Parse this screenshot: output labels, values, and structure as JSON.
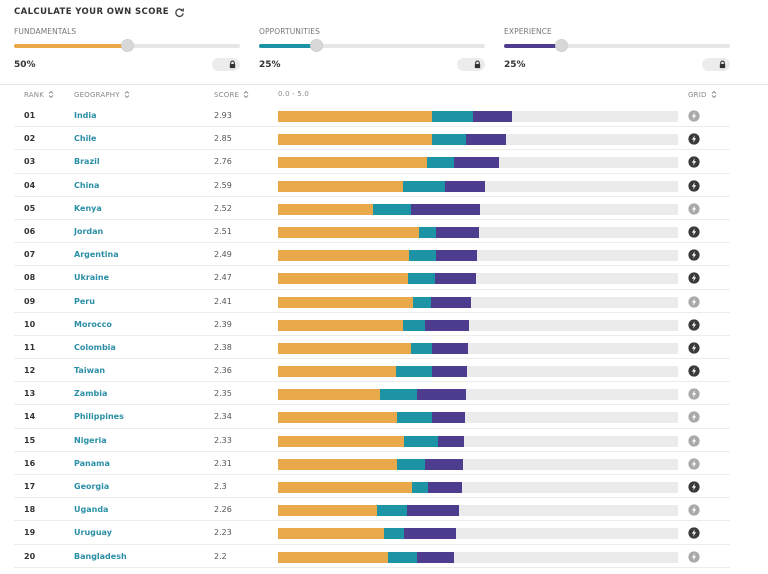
{
  "header": {
    "title": "CALCULATE YOUR OWN SCORE",
    "refresh_icon": "refresh-icon"
  },
  "colors": {
    "fundamentals": "#e9a94a",
    "opportunities": "#1d93a6",
    "experience": "#4e3d8f",
    "grid_dark": "#3a3a3a",
    "grid_light": "#a9a9a9"
  },
  "sliders": [
    {
      "key": "fundamentals",
      "label": "FUNDAMENTALS",
      "value_label": "50%",
      "value": 0.5,
      "color": "#e9a94a"
    },
    {
      "key": "opportunities",
      "label": "OPPORTUNITIES",
      "value_label": "25%",
      "value": 0.25,
      "color": "#1d93a6"
    },
    {
      "key": "experience",
      "label": "EXPERIENCE",
      "value_label": "25%",
      "value": 0.25,
      "color": "#4e3d8f"
    }
  ],
  "table": {
    "headers": {
      "rank": "RANK",
      "geography": "GEOGRAPHY",
      "score": "SCORE",
      "scale": "0.0 - 5.0",
      "grid": "GRID"
    },
    "scale_max": 5.0,
    "rows": [
      {
        "rank": "01",
        "geography": "India",
        "score": "2.93",
        "f": 1.93,
        "o": 0.51,
        "e": 0.49,
        "grid_dark": false
      },
      {
        "rank": "02",
        "geography": "Chile",
        "score": "2.85",
        "f": 1.93,
        "o": 0.42,
        "e": 0.5,
        "grid_dark": true
      },
      {
        "rank": "03",
        "geography": "Brazil",
        "score": "2.76",
        "f": 1.86,
        "o": 0.34,
        "e": 0.56,
        "grid_dark": true
      },
      {
        "rank": "04",
        "geography": "China",
        "score": "2.59",
        "f": 1.56,
        "o": 0.53,
        "e": 0.5,
        "grid_dark": true
      },
      {
        "rank": "05",
        "geography": "Kenya",
        "score": "2.52",
        "f": 1.19,
        "o": 0.47,
        "e": 0.86,
        "grid_dark": false
      },
      {
        "rank": "06",
        "geography": "Jordan",
        "score": "2.51",
        "f": 1.76,
        "o": 0.22,
        "e": 0.53,
        "grid_dark": true
      },
      {
        "rank": "07",
        "geography": "Argentina",
        "score": "2.49",
        "f": 1.64,
        "o": 0.34,
        "e": 0.51,
        "grid_dark": true
      },
      {
        "rank": "08",
        "geography": "Ukraine",
        "score": "2.47",
        "f": 1.63,
        "o": 0.33,
        "e": 0.51,
        "grid_dark": true
      },
      {
        "rank": "09",
        "geography": "Peru",
        "score": "2.41",
        "f": 1.69,
        "o": 0.22,
        "e": 0.5,
        "grid_dark": false
      },
      {
        "rank": "10",
        "geography": "Morocco",
        "score": "2.39",
        "f": 1.56,
        "o": 0.28,
        "e": 0.55,
        "grid_dark": true
      },
      {
        "rank": "11",
        "geography": "Colombia",
        "score": "2.38",
        "f": 1.66,
        "o": 0.26,
        "e": 0.46,
        "grid_dark": true
      },
      {
        "rank": "12",
        "geography": "Taiwan",
        "score": "2.36",
        "f": 1.48,
        "o": 0.44,
        "e": 0.44,
        "grid_dark": true
      },
      {
        "rank": "13",
        "geography": "Zambia",
        "score": "2.35",
        "f": 1.28,
        "o": 0.46,
        "e": 0.61,
        "grid_dark": false
      },
      {
        "rank": "14",
        "geography": "Philippines",
        "score": "2.34",
        "f": 1.49,
        "o": 0.44,
        "e": 0.41,
        "grid_dark": false
      },
      {
        "rank": "15",
        "geography": "Nigeria",
        "score": "2.33",
        "f": 1.57,
        "o": 0.43,
        "e": 0.33,
        "grid_dark": false
      },
      {
        "rank": "16",
        "geography": "Panama",
        "score": "2.31",
        "f": 1.49,
        "o": 0.35,
        "e": 0.47,
        "grid_dark": false
      },
      {
        "rank": "17",
        "geography": "Georgia",
        "score": "2.3",
        "f": 1.67,
        "o": 0.21,
        "e": 0.42,
        "grid_dark": true
      },
      {
        "rank": "18",
        "geography": "Uganda",
        "score": "2.26",
        "f": 1.24,
        "o": 0.37,
        "e": 0.65,
        "grid_dark": false
      },
      {
        "rank": "19",
        "geography": "Uruguay",
        "score": "2.23",
        "f": 1.33,
        "o": 0.24,
        "e": 0.66,
        "grid_dark": true
      },
      {
        "rank": "20",
        "geography": "Bangladesh",
        "score": "2.2",
        "f": 1.37,
        "o": 0.37,
        "e": 0.46,
        "grid_dark": false
      }
    ]
  }
}
